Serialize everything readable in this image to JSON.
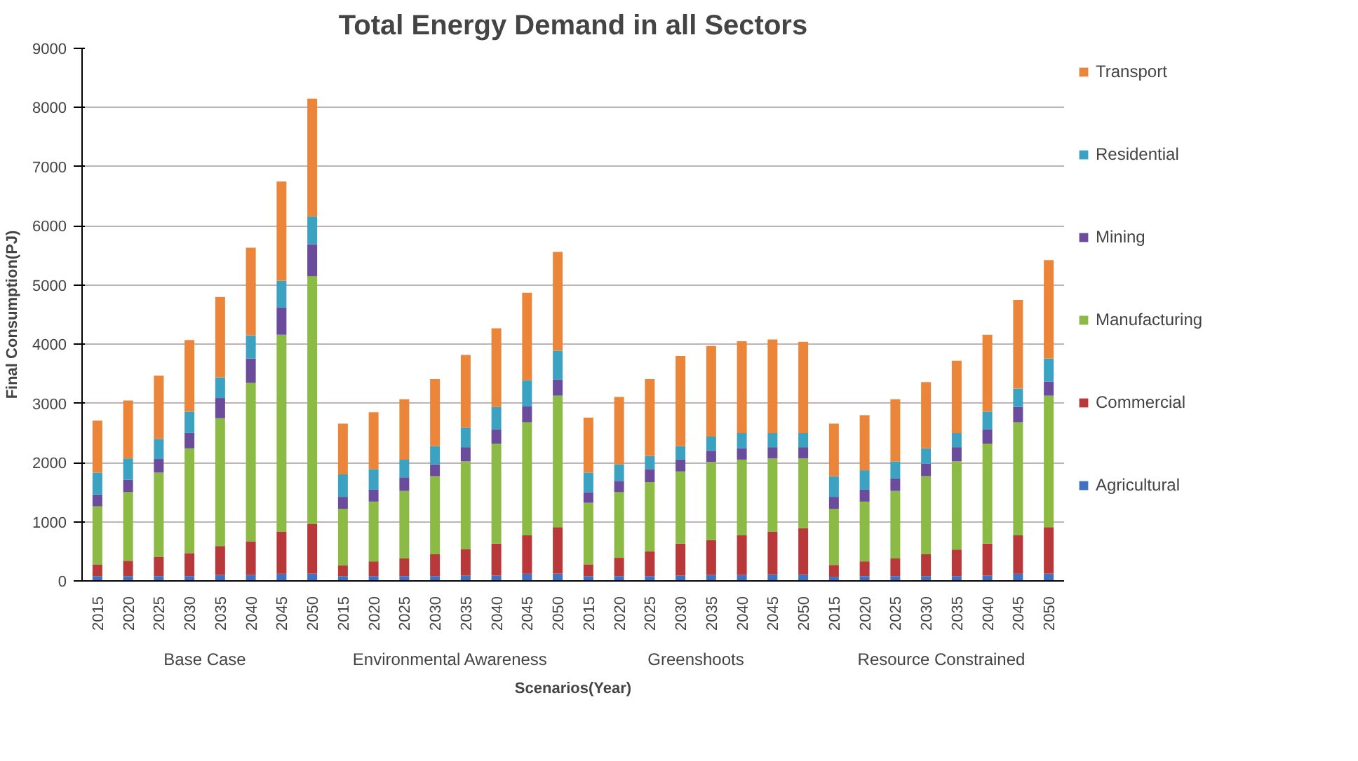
{
  "chart_data": {
    "type": "bar",
    "stacked": true,
    "title": "Total Energy Demand in all Sectors",
    "xlabel": "Scenarios(Year)",
    "ylabel": "Final Consumption(PJ)",
    "categories": [
      "2015",
      "2020",
      "2025",
      "2030",
      "2035",
      "2040",
      "2045",
      "2050",
      "2015",
      "2020",
      "2025",
      "2030",
      "2035",
      "2040",
      "2045",
      "2050",
      "2015",
      "2020",
      "2025",
      "2030",
      "2035",
      "2040",
      "2045",
      "2050",
      "2015",
      "2020",
      "2025",
      "2030",
      "2035",
      "2040",
      "2045",
      "2050"
    ],
    "annotations": [
      "Base Case",
      "Environmental Awareness",
      "Greenshoots",
      "Resource Constrained"
    ],
    "ylim": [
      0,
      9000
    ],
    "yticks": [
      0,
      1000,
      2000,
      3000,
      4000,
      5000,
      6000,
      7000,
      8000,
      9000
    ],
    "grid": "y",
    "legend": "right",
    "series": [
      {
        "name": "Agricultural",
        "color": "#3f72c2",
        "values": [
          80,
          80,
          80,
          80,
          100,
          100,
          120,
          120,
          80,
          80,
          80,
          80,
          90,
          90,
          120,
          120,
          80,
          80,
          80,
          90,
          100,
          100,
          110,
          110,
          70,
          80,
          80,
          80,
          80,
          90,
          120,
          120
        ]
      },
      {
        "name": "Commercial",
        "color": "#b9393b",
        "values": [
          200,
          260,
          330,
          390,
          490,
          570,
          710,
          840,
          180,
          250,
          300,
          370,
          450,
          540,
          650,
          790,
          200,
          310,
          420,
          540,
          590,
          670,
          720,
          780,
          200,
          250,
          300,
          370,
          450,
          540,
          650,
          790
        ]
      },
      {
        "name": "Manufacturing",
        "color": "#8cbb45",
        "values": [
          980,
          1160,
          1420,
          1770,
          2160,
          2680,
          3330,
          4190,
          960,
          1010,
          1140,
          1320,
          1480,
          1690,
          1910,
          2220,
          1040,
          1110,
          1170,
          1220,
          1320,
          1280,
          1240,
          1180,
          950,
          1010,
          1140,
          1320,
          1490,
          1690,
          1910,
          2220
        ]
      },
      {
        "name": "Mining",
        "color": "#6b4b9b",
        "values": [
          200,
          210,
          230,
          260,
          340,
          410,
          460,
          540,
          200,
          200,
          230,
          200,
          240,
          240,
          270,
          270,
          180,
          190,
          220,
          200,
          190,
          190,
          190,
          190,
          200,
          200,
          210,
          210,
          240,
          240,
          260,
          240
        ]
      },
      {
        "name": "Residential",
        "color": "#3ca2c2",
        "values": [
          370,
          360,
          340,
          360,
          350,
          390,
          450,
          470,
          380,
          350,
          300,
          310,
          330,
          380,
          440,
          490,
          330,
          280,
          220,
          230,
          240,
          260,
          240,
          240,
          350,
          330,
          290,
          260,
          240,
          300,
          310,
          390
        ]
      },
      {
        "name": "Transport",
        "color": "#ea8539",
        "values": [
          880,
          980,
          1070,
          1210,
          1360,
          1480,
          1680,
          1990,
          860,
          960,
          1020,
          1130,
          1230,
          1330,
          1480,
          1670,
          930,
          1140,
          1300,
          1520,
          1530,
          1550,
          1580,
          1540,
          890,
          930,
          1050,
          1120,
          1220,
          1300,
          1500,
          1660
        ]
      }
    ]
  }
}
